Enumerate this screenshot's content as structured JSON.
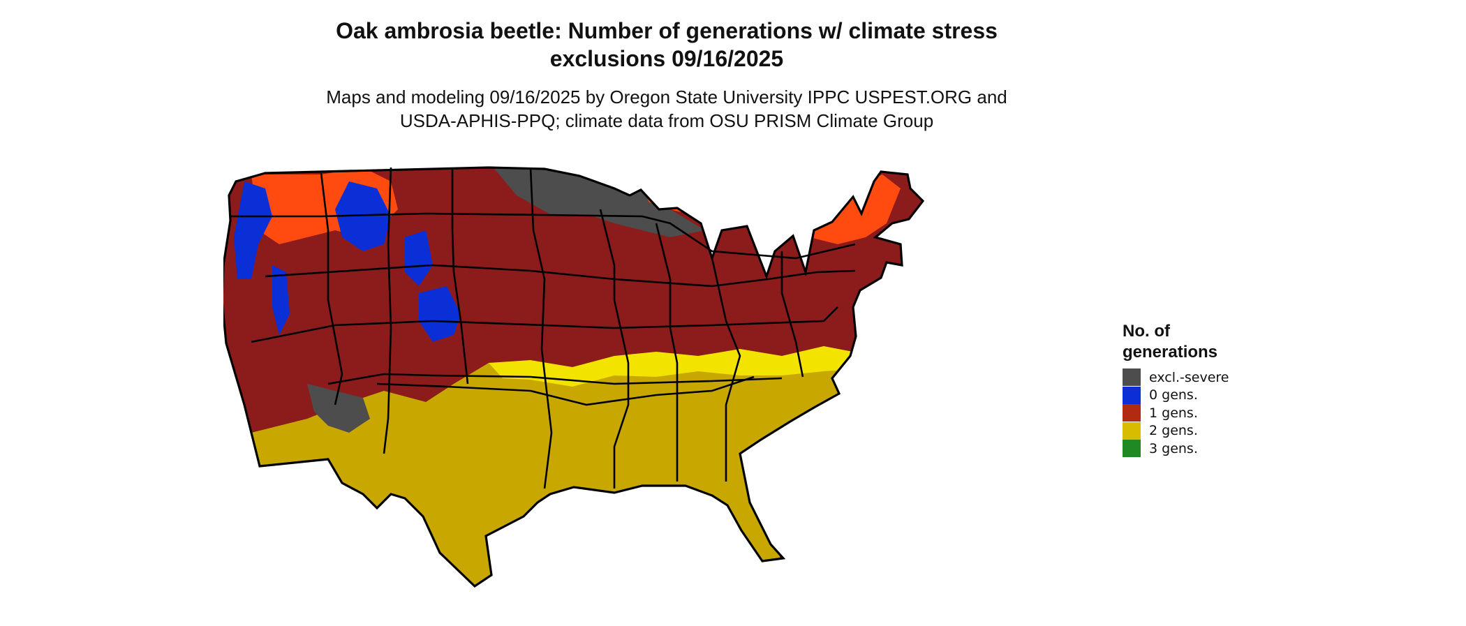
{
  "title_line1": "Oak ambrosia beetle: Number of generations w/ climate stress",
  "title_line2": "exclusions 09/16/2025",
  "subtitle_line1": "Maps and modeling 09/16/2025 by Oregon State University IPPC USPEST.ORG and",
  "subtitle_line2": "USDA-APHIS-PPQ; climate data from OSU PRISM Climate Group",
  "legend": {
    "title_line1": "No. of",
    "title_line2": "generations",
    "items": [
      {
        "label": "excl.-severe",
        "color": "#4d4d4d"
      },
      {
        "label": "0 gens.",
        "color": "#0a2fd6"
      },
      {
        "label": "1 gens.",
        "color": "#b22a12"
      },
      {
        "label": "2 gens.",
        "color": "#d8bc00"
      },
      {
        "label": "3 gens.",
        "color": "#1f8a24"
      }
    ]
  },
  "map_colors": {
    "excluded": "#4d4d4d",
    "zero_gens": "#0a2fd6",
    "one_gen": "#8c1b1b",
    "one_gen_light": "#ff4a10",
    "two_gens": "#c8a800",
    "two_gens_light": "#f2e400",
    "three_gens": "#1f8a24",
    "coast_light": "#7fe0a0",
    "border": "#000000"
  }
}
